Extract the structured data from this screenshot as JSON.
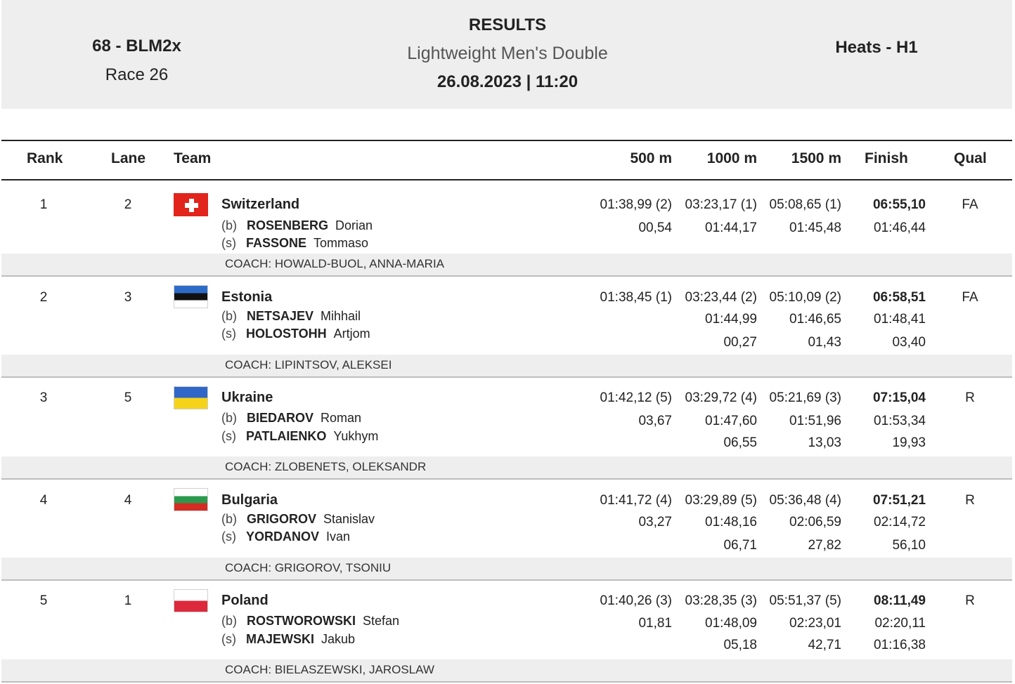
{
  "header": {
    "event_code": "68 - BLM2x",
    "race": "Race 26",
    "title": "RESULTS",
    "subtitle": "Lightweight Men's Double",
    "datetime": "26.08.2023 | 11:20",
    "heat": "Heats - H1"
  },
  "columns": {
    "rank": "Rank",
    "lane": "Lane",
    "team": "Team",
    "m500": "500 m",
    "m1000": "1000 m",
    "m1500": "1500 m",
    "finish": "Finish",
    "qual": "Qual"
  },
  "crew_positions": {
    "bow": "(b)",
    "stroke": "(s)"
  },
  "rows": [
    {
      "rank": "1",
      "lane": "2",
      "country": "Switzerland",
      "flag": "switzerland-flag-icon",
      "bow": {
        "surname": "ROSENBERG",
        "given": "Dorian"
      },
      "stroke": {
        "surname": "FASSONE",
        "given": "Tommaso"
      },
      "m500": "01:38,99 (2)",
      "m1000": "03:23,17 (1)",
      "m1500": "05:08,65 (1)",
      "finish": "06:55,10",
      "split500": "00,54",
      "split1000": "01:44,17",
      "split1500": "01:45,48",
      "splitFin": "01:46,44",
      "diff1000": "",
      "diff1500": "",
      "diffFin": "",
      "qual": "FA",
      "coach": "COACH: HOWALD-BUOL, ANNA-MARIA"
    },
    {
      "rank": "2",
      "lane": "3",
      "country": "Estonia",
      "flag": "estonia-flag-icon",
      "bow": {
        "surname": "NETSAJEV",
        "given": "Mihhail"
      },
      "stroke": {
        "surname": "HOLOSTOHH",
        "given": "Artjom"
      },
      "m500": "01:38,45 (1)",
      "m1000": "03:23,44 (2)",
      "m1500": "05:10,09 (2)",
      "finish": "06:58,51",
      "split500": "",
      "split1000": "01:44,99",
      "split1500": "01:46,65",
      "splitFin": "01:48,41",
      "diff1000": "00,27",
      "diff1500": "01,43",
      "diffFin": "03,40",
      "qual": "FA",
      "coach": "COACH: LIPINTSOV, ALEKSEI"
    },
    {
      "rank": "3",
      "lane": "5",
      "country": "Ukraine",
      "flag": "ukraine-flag-icon",
      "bow": {
        "surname": "BIEDAROV",
        "given": "Roman"
      },
      "stroke": {
        "surname": "PATLAIENKO",
        "given": "Yukhym"
      },
      "m500": "01:42,12 (5)",
      "m1000": "03:29,72 (4)",
      "m1500": "05:21,69 (3)",
      "finish": "07:15,04",
      "split500": "03,67",
      "split1000": "01:47,60",
      "split1500": "01:51,96",
      "splitFin": "01:53,34",
      "diff1000": "06,55",
      "diff1500": "13,03",
      "diffFin": "19,93",
      "qual": "R",
      "coach": "COACH: ZLOBENETS, OLEKSANDR"
    },
    {
      "rank": "4",
      "lane": "4",
      "country": "Bulgaria",
      "flag": "bulgaria-flag-icon",
      "bow": {
        "surname": "GRIGOROV",
        "given": "Stanislav"
      },
      "stroke": {
        "surname": "YORDANOV",
        "given": "Ivan"
      },
      "m500": "01:41,72 (4)",
      "m1000": "03:29,89 (5)",
      "m1500": "05:36,48 (4)",
      "finish": "07:51,21",
      "split500": "03,27",
      "split1000": "01:48,16",
      "split1500": "02:06,59",
      "splitFin": "02:14,72",
      "diff1000": "06,71",
      "diff1500": "27,82",
      "diffFin": "56,10",
      "qual": "R",
      "coach": "COACH: GRIGOROV, TSONIU"
    },
    {
      "rank": "5",
      "lane": "1",
      "country": "Poland",
      "flag": "poland-flag-icon",
      "bow": {
        "surname": "ROSTWOROWSKI",
        "given": "Stefan"
      },
      "stroke": {
        "surname": "MAJEWSKI",
        "given": "Jakub"
      },
      "m500": "01:40,26 (3)",
      "m1000": "03:28,35 (3)",
      "m1500": "05:51,37 (5)",
      "finish": "08:11,49",
      "split500": "01,81",
      "split1000": "01:48,09",
      "split1500": "02:23,01",
      "splitFin": "02:20,11",
      "diff1000": "05,18",
      "diff1500": "42,71",
      "diffFin": "01:16,38",
      "qual": "R",
      "coach": "COACH: BIELASZEWSKI, JAROSLAW"
    }
  ]
}
